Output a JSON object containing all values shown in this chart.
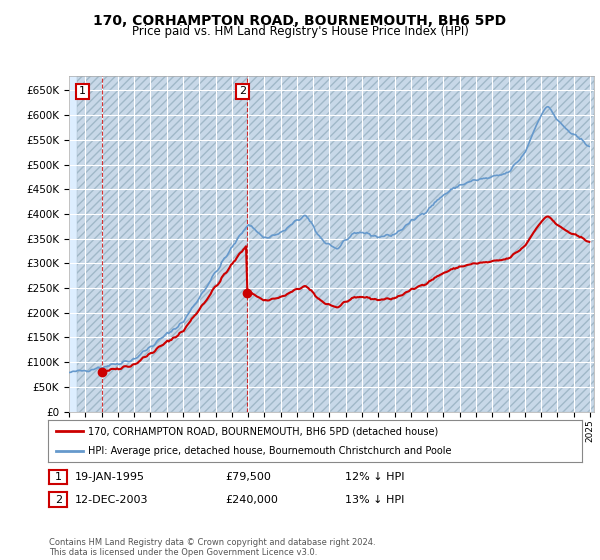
{
  "title": "170, CORHAMPTON ROAD, BOURNEMOUTH, BH6 5PD",
  "subtitle": "Price paid vs. HM Land Registry's House Price Index (HPI)",
  "legend_line1": "170, CORHAMPTON ROAD, BOURNEMOUTH, BH6 5PD (detached house)",
  "legend_line2": "HPI: Average price, detached house, Bournemouth Christchurch and Poole",
  "annotation1_date": "19-JAN-1995",
  "annotation1_price": "£79,500",
  "annotation1_hpi": "12% ↓ HPI",
  "annotation2_date": "12-DEC-2003",
  "annotation2_price": "£240,000",
  "annotation2_hpi": "13% ↓ HPI",
  "footer": "Contains HM Land Registry data © Crown copyright and database right 2024.\nThis data is licensed under the Open Government Licence v3.0.",
  "price_color": "#cc0000",
  "hpi_color": "#6699cc",
  "annotation_box_color": "#cc0000",
  "background_color": "#ffffff",
  "plot_bg_color": "#ddeeff",
  "grid_color": "#ffffff",
  "hatch_facecolor": "#c8d8e8",
  "ylim": [
    0,
    680000
  ],
  "yticks": [
    0,
    50000,
    100000,
    150000,
    200000,
    250000,
    300000,
    350000,
    400000,
    450000,
    500000,
    550000,
    600000,
    650000
  ],
  "sale1_x_year": 1995.05,
  "sale1_y": 79500,
  "sale2_x_year": 2003.95,
  "sale2_y": 240000,
  "xmin": 1993.5,
  "xmax": 2025.25
}
